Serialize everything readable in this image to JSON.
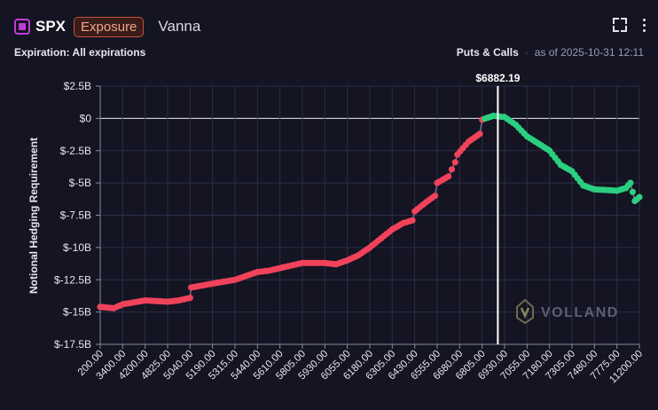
{
  "header": {
    "ticker": "SPX",
    "badge": "Exposure",
    "metric": "Vanna",
    "expand_icon": "fullscreen-icon",
    "more_icon": "more-vertical-icon"
  },
  "subheader": {
    "expiration": "Expiration: All expirations",
    "filter": "Puts & Calls",
    "separator": "·",
    "as_of": "as of 2025-10-31 12:11"
  },
  "watermark": {
    "text": "VOLLAND"
  },
  "colors": {
    "negative": "#f0435a",
    "positive": "#2bcf7f",
    "grid": "#2c2e48",
    "ticker_icon": "#c03cd6"
  },
  "chart_data": {
    "type": "scatter",
    "ylabel": "Notional Hedging Requirement",
    "ylim": [
      -17.5,
      2.5
    ],
    "yticks": [
      2.5,
      0,
      -2.5,
      -5,
      -7.5,
      -10,
      -12.5,
      -15,
      -17.5
    ],
    "ytick_labels": [
      "$2.5B",
      "$0",
      "$-2.5B",
      "$-5B",
      "$-7.5B",
      "$-10B",
      "$-12.5B",
      "$-15B",
      "$-17.5B"
    ],
    "xtick_labels": [
      "200.00",
      "3400.00",
      "4200.00",
      "4825.00",
      "5040.00",
      "5190.00",
      "5315.00",
      "5440.00",
      "5610.00",
      "5805.00",
      "5930.00",
      "6055.00",
      "6180.00",
      "6305.00",
      "6430.00",
      "6555.00",
      "6680.00",
      "6805.00",
      "6930.00",
      "7055.00",
      "7180.00",
      "7305.00",
      "7480.00",
      "7775.00",
      "11200.00"
    ],
    "spot_label": "$6882.19",
    "spot_position_tick_index": 17.7,
    "grid": true,
    "legend": "none",
    "series_profile": {
      "tick_index": [
        0,
        0.6,
        1,
        2,
        3,
        3.5,
        4,
        4.05,
        5,
        6,
        7,
        7.5,
        8,
        9,
        10,
        10.5,
        11,
        11.5,
        12,
        12.5,
        13,
        13.5,
        13.9,
        14,
        14.5,
        14.9,
        15,
        15.5,
        15.8,
        15.9,
        16.4,
        16.9,
        17.0,
        17.5,
        18.0,
        18.5,
        19.0,
        20,
        20.5,
        21.0,
        21.5,
        22.0,
        23,
        23.4,
        23.6,
        23.8,
        24.0
      ],
      "values": [
        -14.6,
        -14.7,
        -14.4,
        -14.1,
        -14.2,
        -14.1,
        -13.9,
        -13.1,
        -12.8,
        -12.5,
        -11.9,
        -11.8,
        -11.6,
        -11.2,
        -11.2,
        -11.3,
        -11.0,
        -10.6,
        -10.0,
        -9.3,
        -8.6,
        -8.1,
        -7.9,
        -7.2,
        -6.5,
        -6.0,
        -5.0,
        -4.5,
        -3.4,
        -2.8,
        -1.8,
        -1.2,
        -0.1,
        0.2,
        0.1,
        -0.5,
        -1.4,
        -2.5,
        -3.6,
        -4.1,
        -5.2,
        -5.5,
        -5.6,
        -5.4,
        -5.0,
        -6.4,
        -6.1
      ],
      "negative_until_tick_index": 17.0
    }
  }
}
